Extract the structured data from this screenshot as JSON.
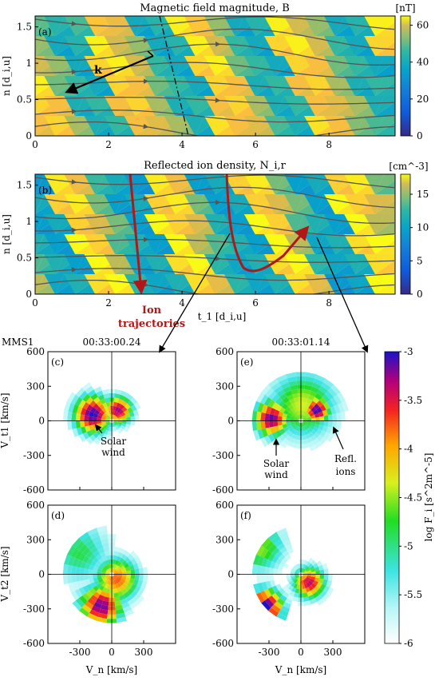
{
  "chart_data": [
    {
      "type": "heatmap",
      "panel": "(a)",
      "title": "Magnetic field magnitude, B",
      "xlabel": "",
      "ylabel": "n [d_i,u]",
      "xlim": [
        0,
        9.8
      ],
      "ylim": [
        0,
        1.65
      ],
      "xticks": [
        "0",
        "2",
        "4",
        "6",
        "8"
      ],
      "yticks": [
        "0",
        "0.5",
        "1",
        "1.5"
      ],
      "colorbar": {
        "label": "[nT]",
        "ticks": [
          "0",
          "20",
          "40",
          "60"
        ],
        "range": [
          0,
          65
        ]
      },
      "annotations": [
        "k"
      ],
      "value_pattern": {
        "low": 22,
        "high": 58,
        "description": "diagonal stripes of enhanced field propagating in time"
      }
    },
    {
      "type": "heatmap",
      "panel": "(b)",
      "title": "Reflected ion density, N_i,r",
      "xlabel": "t_1 [d_i,u]",
      "ylabel": "n [d_i,u]",
      "xlim": [
        0,
        9.8
      ],
      "ylim": [
        0,
        1.65
      ],
      "xticks": [
        "0",
        "2",
        "4",
        "6",
        "8"
      ],
      "yticks": [
        "0",
        "0.5",
        "1",
        "1.5"
      ],
      "colorbar": {
        "label": "[cm^-3]",
        "ticks": [
          "0",
          "5",
          "10",
          "15"
        ],
        "range": [
          0,
          18
        ]
      },
      "annotations": [
        "Ion trajectories"
      ]
    },
    {
      "type": "heatmap",
      "panel": "(c)",
      "spacecraft": "MMS1",
      "time": "00:33:00.24",
      "ylabel": "V_t1 [km/s]",
      "xlim": [
        -600,
        600
      ],
      "ylim": [
        -600,
        600
      ],
      "yticks": [
        "600",
        "300",
        "0",
        "-300",
        "-600"
      ],
      "annotations": [
        "Solar wind"
      ],
      "populations": [
        {
          "label": "Solar wind",
          "vn": -200,
          "vt": 60
        }
      ]
    },
    {
      "type": "heatmap",
      "panel": "(e)",
      "time": "00:33:01.14",
      "xlim": [
        -600,
        600
      ],
      "ylim": [
        -600,
        600
      ],
      "yticks": [
        "600",
        "300",
        "0",
        "-300",
        "-600"
      ],
      "annotations": [
        "Solar wind",
        "Refl. ions"
      ],
      "populations": [
        {
          "label": "Solar wind",
          "vn": -280,
          "vt": 20
        },
        {
          "label": "Refl. ions",
          "vn": 150,
          "vt": 100
        }
      ]
    },
    {
      "type": "heatmap",
      "panel": "(d)",
      "xlabel": "V_n [km/s]",
      "ylabel": "V_t2 [km/s]",
      "xlim": [
        -600,
        600
      ],
      "ylim": [
        -600,
        600
      ],
      "xticks": [
        "-300",
        "0",
        "300"
      ],
      "yticks": [
        "600",
        "300",
        "0",
        "-300",
        "-600"
      ]
    },
    {
      "type": "heatmap",
      "panel": "(f)",
      "xlabel": "V_n [km/s]",
      "xlim": [
        -600,
        600
      ],
      "ylim": [
        -600,
        600
      ],
      "xticks": [
        "-300",
        "0",
        "300"
      ],
      "yticks": [
        "600",
        "300",
        "0",
        "-300",
        "-600"
      ]
    }
  ],
  "colorbar_vdf": {
    "label": "log F_i [s^2m^-5]",
    "ticks": [
      "-3",
      "-3.5",
      "-4",
      "-4.5",
      "-5",
      "-5.5",
      "-6"
    ],
    "range": [
      -6,
      -3
    ]
  },
  "colors": {
    "parula_low": "#352a87",
    "parula_high": "#f9fb0e",
    "arrow_red": "#b01818",
    "streamline": "#555555"
  }
}
